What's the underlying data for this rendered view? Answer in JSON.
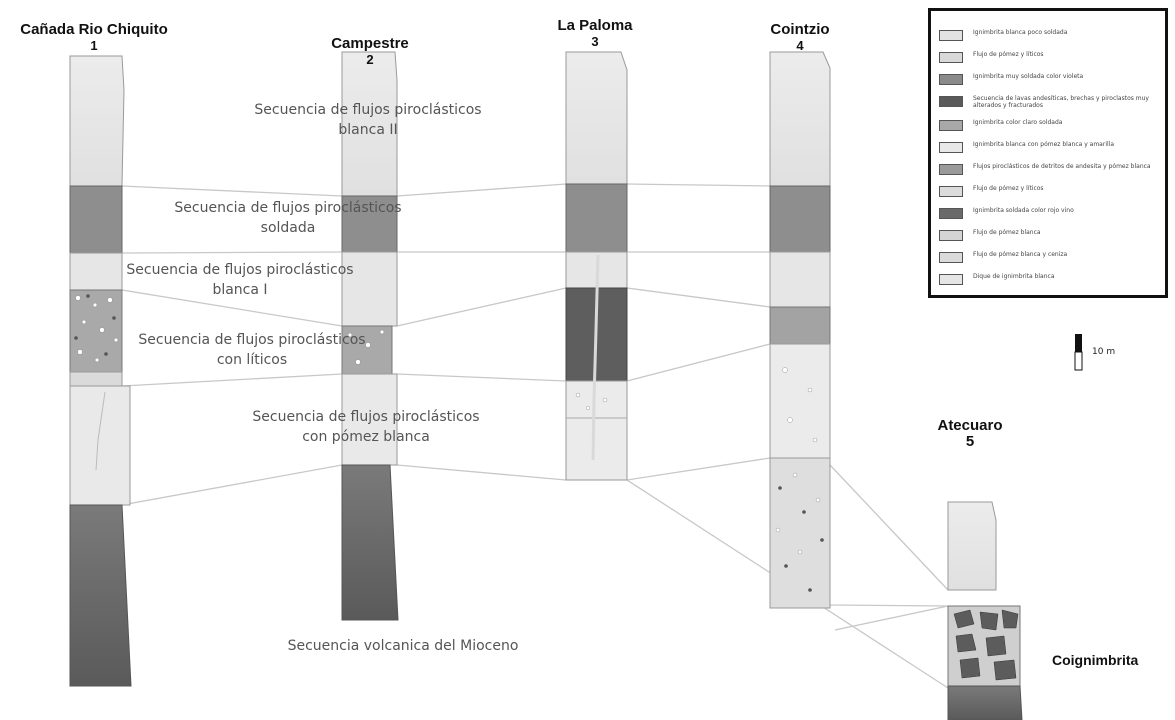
{
  "columns": [
    {
      "id": "c1",
      "name": "Cañada Rio Chiquito",
      "number": "1"
    },
    {
      "id": "c2",
      "name": "Campestre",
      "number": "2"
    },
    {
      "id": "c3",
      "name": "La Paloma",
      "number": "3"
    },
    {
      "id": "c4",
      "name": "Cointzio",
      "number": "4"
    },
    {
      "id": "c5",
      "name": "Atecuaro",
      "number": "5"
    }
  ],
  "unit_labels": {
    "blanca2": [
      "Secuencia de flujos piroclásticos",
      "blanca II"
    ],
    "soldada": [
      "Secuencia de flujos piroclásticos",
      "soldada"
    ],
    "blanca1": [
      "Secuencia de flujos piroclásticos",
      "blanca I"
    ],
    "liticos": [
      "Secuencia de flujos piroclásticos",
      "con líticos"
    ],
    "pomez": [
      "Secuencia de flujos piroclásticos",
      "con pómez blanca"
    ],
    "mioceno": [
      "Secuencia volcanica del Mioceno"
    ]
  },
  "coignimbrita_label": "Coignimbrita",
  "scale_label": "10 m",
  "legend": [
    {
      "text": "Ignimbrita blanca poco soldada",
      "color": "#e2e2e2"
    },
    {
      "text": "Flujo de pómez y líticos",
      "color": "#d8d8d8"
    },
    {
      "text": "Ignimbrita muy soldada color violeta",
      "color": "#8a8a8a"
    },
    {
      "text": "Secuencia de lavas andesíticas, brechas y piroclastos muy alterados y fracturados",
      "color": "#5a5a5a"
    },
    {
      "text": "Ignimbrita color claro soldada",
      "color": "#a8a8a8"
    },
    {
      "text": "Ignimbrita blanca con pómez blanca y amarilla",
      "color": "#e8e8e8"
    },
    {
      "text": "Flujos piroclásticos de detritos de andesita y pómez blanca",
      "color": "#9a9a9a"
    },
    {
      "text": "Flujo de pómez y líticos",
      "color": "#dcdcdc"
    },
    {
      "text": "Ignimbrita soldada color rojo vino",
      "color": "#6a6a6a"
    },
    {
      "text": "Flujo de pómez blanca",
      "color": "#d4d4d4"
    },
    {
      "text": "Flujo de pómez blanca y ceniza",
      "color": "#dadada"
    },
    {
      "text": "Dique de ignimbrita blanca",
      "color": "#e5e5e5"
    }
  ]
}
